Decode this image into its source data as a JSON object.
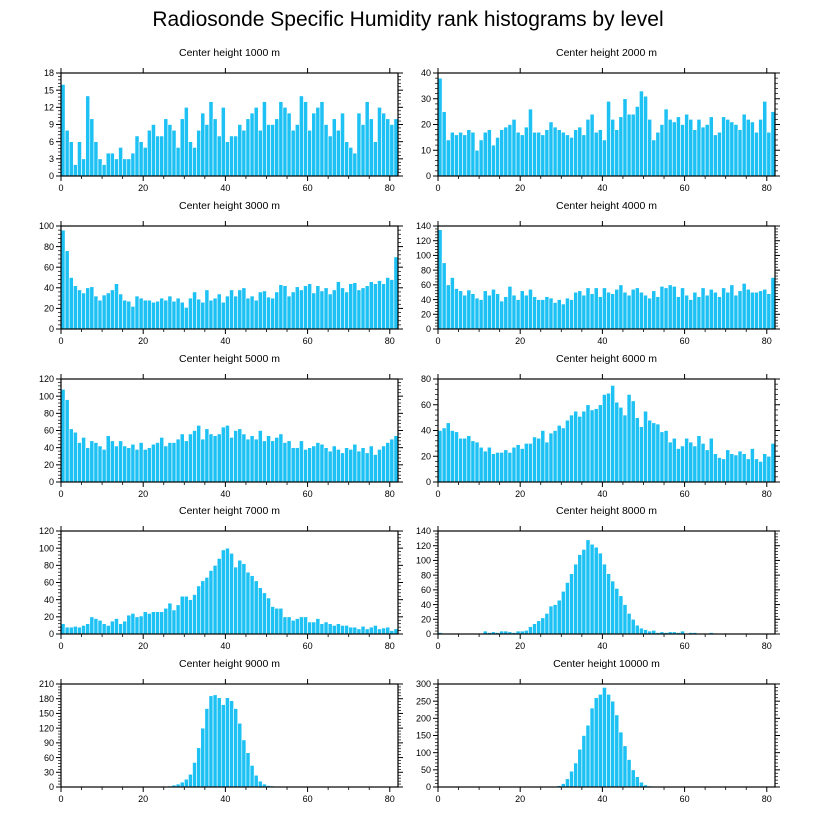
{
  "title": "Radiosonde Specific Humidity rank histograms by level",
  "colors": {
    "bar": "#1ec1f3",
    "bar_edge": "#ffffff",
    "axis": "#000000",
    "background": "#ffffff"
  },
  "chart_data": [
    {
      "type": "bar",
      "title": "Center height 1000 m",
      "xlim": [
        0,
        82
      ],
      "ylim": [
        0,
        18
      ],
      "x_ticks": [
        0,
        20,
        40,
        60,
        80
      ],
      "y_ticks": [
        0,
        3,
        6,
        9,
        12,
        15,
        18
      ],
      "values": [
        16,
        8,
        6,
        2,
        6,
        3,
        14,
        10,
        6,
        3,
        2,
        4,
        4,
        3,
        5,
        3,
        3,
        4,
        7,
        6,
        5,
        8,
        9,
        7,
        7,
        10,
        9,
        8,
        5,
        10,
        12,
        6,
        5,
        8,
        11,
        9,
        13,
        10,
        7,
        12,
        6,
        7,
        7,
        9,
        8,
        10,
        11,
        12,
        8,
        13,
        9,
        9,
        10,
        13,
        12,
        11,
        8,
        9,
        14,
        13,
        8,
        11,
        12,
        13,
        9,
        7,
        10,
        8,
        11,
        6,
        5,
        4,
        11,
        9,
        13,
        10,
        6,
        12,
        11,
        10,
        9,
        10
      ]
    },
    {
      "type": "bar",
      "title": "Center height 2000 m",
      "xlim": [
        0,
        82
      ],
      "ylim": [
        0,
        40
      ],
      "x_ticks": [
        0,
        20,
        40,
        60,
        80
      ],
      "y_ticks": [
        0,
        10,
        20,
        30,
        40
      ],
      "values": [
        38,
        25,
        14,
        17,
        16,
        17,
        16,
        18,
        17,
        10,
        14,
        17,
        18,
        12,
        15,
        18,
        19,
        20,
        22,
        17,
        16,
        19,
        26,
        17,
        17,
        16,
        18,
        21,
        19,
        18,
        17,
        16,
        15,
        18,
        19,
        16,
        22,
        24,
        17,
        18,
        14,
        29,
        22,
        18,
        23,
        30,
        24,
        24,
        27,
        33,
        31,
        22,
        14,
        17,
        20,
        26,
        22,
        21,
        23,
        20,
        24,
        22,
        18,
        22,
        19,
        20,
        23,
        16,
        17,
        23,
        22,
        21,
        20,
        18,
        24,
        22,
        21,
        17,
        22,
        29,
        17,
        25
      ]
    },
    {
      "type": "bar",
      "title": "Center height 3000 m",
      "xlim": [
        0,
        82
      ],
      "ylim": [
        0,
        100
      ],
      "x_ticks": [
        0,
        20,
        40,
        60,
        80
      ],
      "y_ticks": [
        0,
        20,
        40,
        60,
        80,
        100
      ],
      "values": [
        96,
        76,
        50,
        42,
        38,
        35,
        40,
        41,
        32,
        28,
        33,
        35,
        38,
        44,
        34,
        28,
        27,
        22,
        32,
        30,
        28,
        28,
        26,
        27,
        30,
        28,
        32,
        27,
        30,
        26,
        21,
        30,
        36,
        29,
        26,
        38,
        28,
        30,
        34,
        26,
        32,
        38,
        32,
        38,
        40,
        30,
        32,
        28,
        36,
        37,
        31,
        30,
        36,
        43,
        42,
        32,
        36,
        41,
        38,
        42,
        44,
        35,
        42,
        37,
        40,
        34,
        38,
        46,
        40,
        36,
        44,
        45,
        38,
        40,
        42,
        46,
        44,
        47,
        44,
        50,
        48,
        70
      ]
    },
    {
      "type": "bar",
      "title": "Center height 4000 m",
      "xlim": [
        0,
        82
      ],
      "ylim": [
        0,
        140
      ],
      "x_ticks": [
        0,
        20,
        40,
        60,
        80
      ],
      "y_ticks": [
        0,
        20,
        40,
        60,
        80,
        100,
        120,
        140
      ],
      "values": [
        135,
        90,
        60,
        70,
        55,
        52,
        46,
        53,
        48,
        42,
        40,
        52,
        46,
        54,
        48,
        38,
        44,
        58,
        46,
        40,
        52,
        46,
        54,
        44,
        40,
        40,
        44,
        42,
        36,
        40,
        34,
        42,
        40,
        50,
        52,
        46,
        56,
        48,
        56,
        44,
        56,
        50,
        48,
        54,
        60,
        50,
        46,
        54,
        56,
        50,
        46,
        42,
        52,
        44,
        58,
        56,
        60,
        58,
        44,
        56,
        46,
        40,
        50,
        44,
        56,
        46,
        54,
        50,
        44,
        56,
        50,
        60,
        46,
        52,
        62,
        54,
        50,
        50,
        52,
        54,
        48,
        70
      ]
    },
    {
      "type": "bar",
      "title": "Center height 5000 m",
      "xlim": [
        0,
        82
      ],
      "ylim": [
        0,
        120
      ],
      "x_ticks": [
        0,
        20,
        40,
        60,
        80
      ],
      "y_ticks": [
        0,
        20,
        40,
        60,
        80,
        100,
        120
      ],
      "values": [
        108,
        96,
        62,
        58,
        46,
        52,
        40,
        48,
        46,
        42,
        38,
        54,
        48,
        42,
        48,
        42,
        40,
        44,
        38,
        46,
        38,
        40,
        44,
        46,
        52,
        42,
        46,
        46,
        50,
        56,
        48,
        56,
        60,
        66,
        50,
        62,
        56,
        54,
        56,
        64,
        66,
        52,
        60,
        62,
        56,
        50,
        54,
        50,
        60,
        48,
        54,
        48,
        52,
        56,
        46,
        48,
        40,
        40,
        48,
        38,
        40,
        42,
        46,
        44,
        40,
        36,
        42,
        38,
        34,
        40,
        38,
        44,
        36,
        40,
        34,
        42,
        32,
        38,
        42,
        46,
        50,
        54
      ]
    },
    {
      "type": "bar",
      "title": "Center height 6000 m",
      "xlim": [
        0,
        82
      ],
      "ylim": [
        0,
        80
      ],
      "x_ticks": [
        0,
        20,
        40,
        60,
        80
      ],
      "y_ticks": [
        0,
        20,
        40,
        60,
        80
      ],
      "values": [
        40,
        42,
        46,
        40,
        39,
        34,
        34,
        36,
        32,
        31,
        27,
        24,
        27,
        22,
        23,
        23,
        25,
        23,
        27,
        29,
        26,
        30,
        30,
        35,
        34,
        40,
        31,
        38,
        40,
        44,
        42,
        48,
        52,
        55,
        51,
        55,
        60,
        56,
        57,
        60,
        68,
        69,
        75,
        62,
        58,
        52,
        68,
        63,
        50,
        43,
        55,
        48,
        46,
        45,
        39,
        40,
        31,
        34,
        26,
        28,
        34,
        31,
        28,
        36,
        30,
        25,
        34,
        22,
        19,
        18,
        25,
        22,
        21,
        24,
        22,
        18,
        26,
        18,
        16,
        22,
        20,
        30
      ]
    },
    {
      "type": "bar",
      "title": "Center height 7000 m",
      "xlim": [
        0,
        82
      ],
      "ylim": [
        0,
        120
      ],
      "x_ticks": [
        0,
        20,
        40,
        60,
        80
      ],
      "y_ticks": [
        0,
        20,
        40,
        60,
        80,
        100,
        120
      ],
      "values": [
        12,
        8,
        8,
        9,
        8,
        10,
        12,
        20,
        18,
        16,
        12,
        10,
        15,
        18,
        12,
        15,
        22,
        24,
        20,
        21,
        26,
        24,
        26,
        26,
        26,
        30,
        36,
        28,
        34,
        44,
        44,
        40,
        46,
        56,
        62,
        66,
        74,
        80,
        88,
        98,
        100,
        94,
        78,
        86,
        82,
        72,
        68,
        62,
        54,
        48,
        42,
        32,
        30,
        30,
        20,
        20,
        16,
        18,
        20,
        20,
        14,
        14,
        18,
        12,
        14,
        12,
        10,
        12,
        10,
        10,
        8,
        8,
        6,
        9,
        6,
        8,
        10,
        6,
        7,
        8,
        4,
        6
      ]
    },
    {
      "type": "bar",
      "title": "Center height 8000 m",
      "xlim": [
        0,
        82
      ],
      "ylim": [
        0,
        140
      ],
      "x_ticks": [
        0,
        20,
        40,
        60,
        80
      ],
      "y_ticks": [
        0,
        20,
        40,
        60,
        80,
        100,
        120,
        140
      ],
      "values": [
        2,
        1,
        1,
        1,
        1,
        1,
        1,
        1,
        1,
        1,
        1,
        4,
        2,
        3,
        2,
        4,
        4,
        3,
        2,
        4,
        4,
        5,
        10,
        14,
        18,
        22,
        28,
        38,
        40,
        46,
        58,
        70,
        82,
        95,
        108,
        115,
        128,
        122,
        118,
        110,
        95,
        82,
        72,
        62,
        52,
        40,
        28,
        20,
        12,
        8,
        6,
        4,
        5,
        2,
        3,
        2,
        3,
        3,
        2,
        4,
        1,
        2,
        2,
        1,
        1,
        1,
        2,
        1,
        1,
        1,
        1,
        1,
        1,
        1,
        1,
        1,
        1,
        1,
        1,
        1,
        1,
        1
      ]
    },
    {
      "type": "bar",
      "title": "Center height 9000 m",
      "xlim": [
        0,
        82
      ],
      "ylim": [
        0,
        210
      ],
      "x_ticks": [
        0,
        20,
        40,
        60,
        80
      ],
      "y_ticks": [
        0,
        30,
        60,
        90,
        120,
        150,
        180,
        210
      ],
      "values": [
        0,
        0,
        0,
        0,
        0,
        0,
        0,
        0,
        0,
        0,
        0,
        0,
        0,
        0,
        0,
        0,
        0,
        0,
        0,
        0,
        0,
        0,
        0,
        0,
        0,
        1,
        2,
        4,
        6,
        10,
        16,
        26,
        50,
        80,
        120,
        160,
        186,
        188,
        182,
        168,
        182,
        176,
        160,
        130,
        96,
        70,
        44,
        24,
        12,
        6,
        3,
        2,
        1,
        1,
        1,
        1,
        1,
        1,
        0,
        0,
        1,
        0,
        0,
        0,
        0,
        0,
        0,
        0,
        0,
        0,
        0,
        0,
        0,
        0,
        0,
        0,
        0,
        0,
        0,
        0,
        0,
        0
      ]
    },
    {
      "type": "bar",
      "title": "Center height 10000 m",
      "xlim": [
        0,
        82
      ],
      "ylim": [
        0,
        300
      ],
      "x_ticks": [
        0,
        20,
        40,
        60,
        80
      ],
      "y_ticks": [
        0,
        50,
        100,
        150,
        200,
        250,
        300
      ],
      "values": [
        0,
        0,
        0,
        0,
        0,
        0,
        0,
        0,
        0,
        0,
        0,
        0,
        0,
        0,
        0,
        0,
        0,
        0,
        0,
        0,
        0,
        0,
        0,
        0,
        0,
        0,
        0,
        0,
        2,
        4,
        10,
        24,
        46,
        70,
        110,
        150,
        180,
        230,
        260,
        270,
        290,
        270,
        250,
        210,
        160,
        120,
        80,
        50,
        30,
        14,
        6,
        3,
        2,
        1,
        1,
        0,
        0,
        0,
        0,
        0,
        0,
        0,
        0,
        0,
        0,
        0,
        0,
        0,
        0,
        0,
        0,
        0,
        0,
        0,
        0,
        0,
        0,
        0,
        0,
        0,
        0,
        0
      ]
    }
  ]
}
